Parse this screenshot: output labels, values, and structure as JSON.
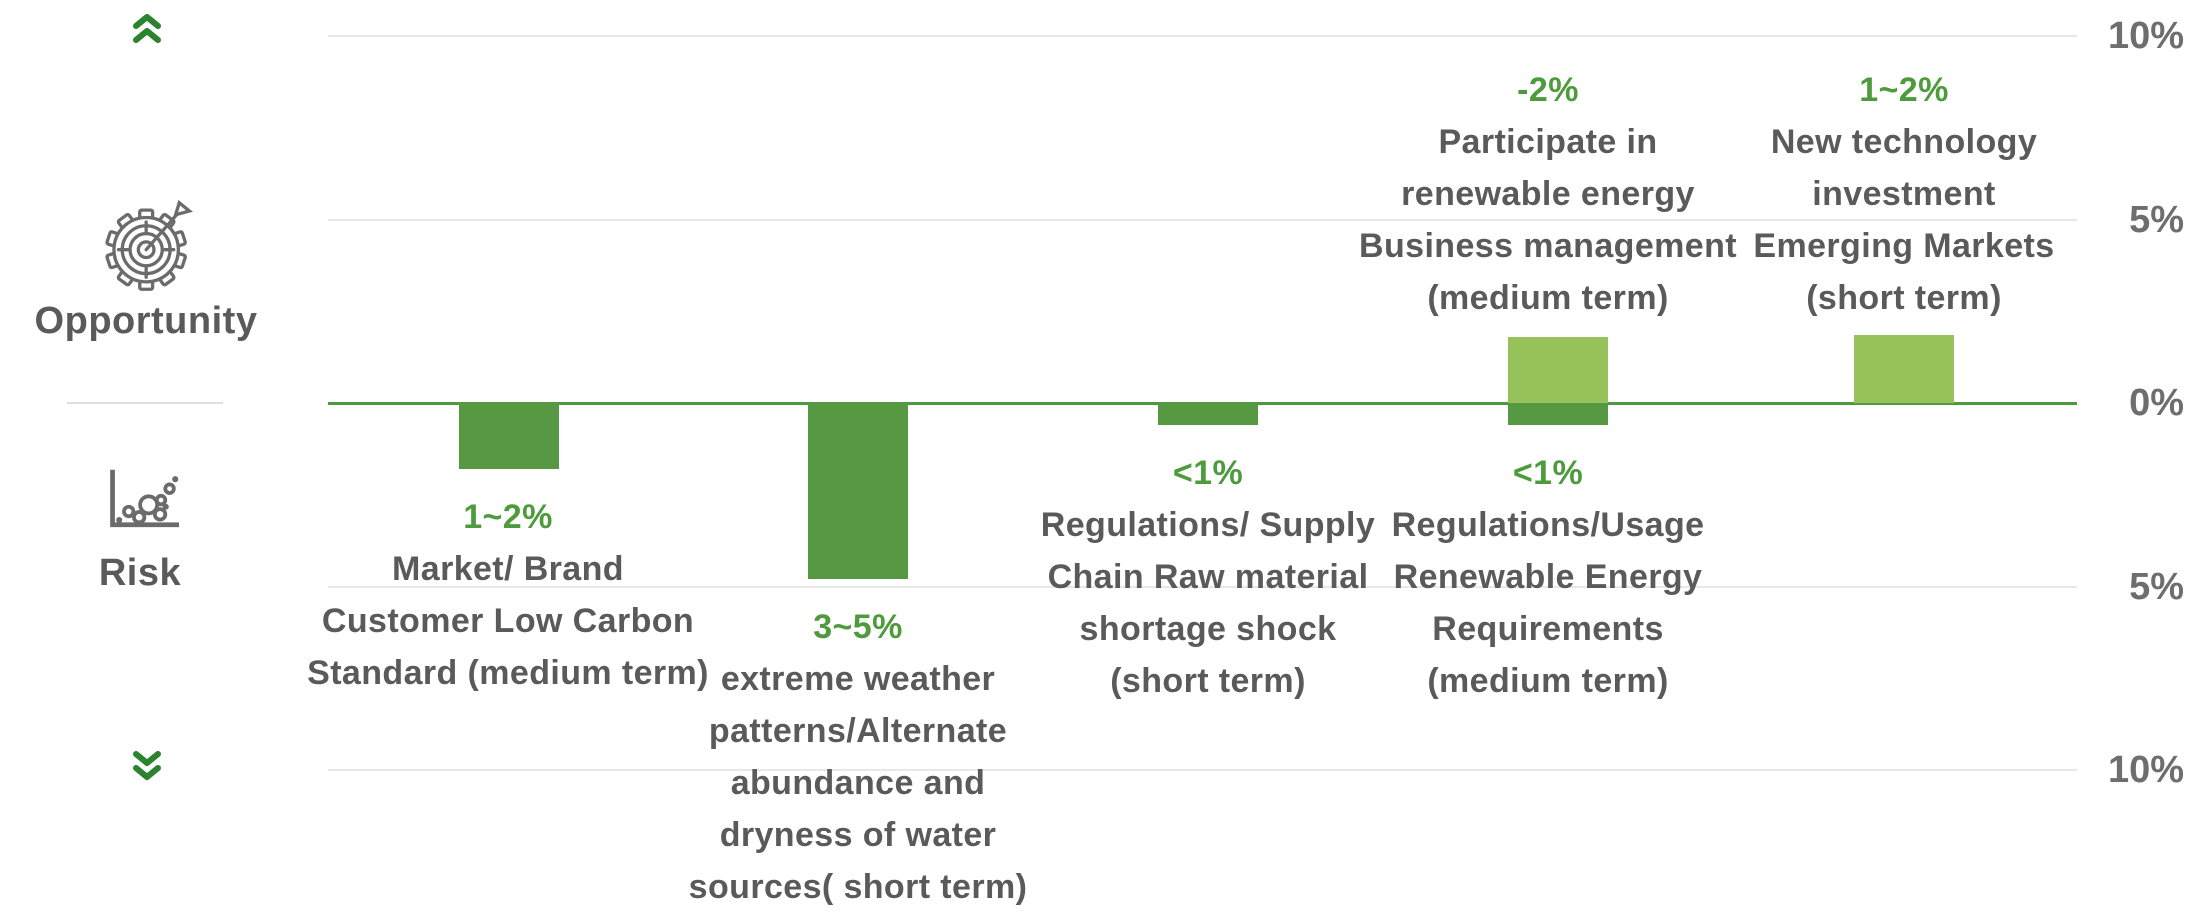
{
  "page": {
    "background": "#ffffff"
  },
  "sidebar": {
    "opportunity_label": "Opportunity",
    "risk_label": "Risk",
    "icons": {
      "top": "double-chevron-up-icon",
      "opportunity": "gear-target-dart-icon",
      "risk": "scatter-bubble-chart-icon",
      "bottom": "double-chevron-down-icon"
    }
  },
  "colors": {
    "risk_bar": "#579943",
    "opportunity_bar": "#97C159",
    "zero_line": "#4F9A3F",
    "value_text": "#4D9B3C",
    "label_text": "#5A5A5A",
    "tick_text": "#6E6E6E",
    "gridline": "#E8E8E8",
    "chevron": "#2B832F",
    "icon_stroke": "#6B6B6B",
    "divider": "#E0E0E0"
  },
  "chart_data": {
    "type": "bar",
    "title": "",
    "xlabel": "",
    "ylabel": "",
    "ylim": [
      -10,
      10
    ],
    "grid": true,
    "legend": "none",
    "yticks": [
      {
        "pct": 10,
        "label": "10%"
      },
      {
        "pct": 5,
        "label": "5%"
      },
      {
        "pct": 0,
        "label": "0%"
      },
      {
        "pct": -5,
        "label": "5%"
      },
      {
        "pct": -10,
        "label": "10%"
      }
    ],
    "series": [
      {
        "name": "Risk",
        "color": "#579943",
        "values": [
          -1.8,
          -4.8,
          -0.6,
          -0.6,
          0
        ]
      },
      {
        "name": "Opportunity",
        "color": "#97C159",
        "values": [
          0,
          0,
          0,
          1.8,
          1.85
        ]
      }
    ],
    "categories": [
      "Market/ Brand Customer Low Carbon Standard (medium term)",
      "extreme weather patterns/Alternate abundance and dryness of water sources( short term)",
      "Regulations/ Supply Chain Raw material shortage shock (short term)",
      "Regulations/Usage Renewable Energy Requirements (medium term) + Participate in renewable energy Business management (medium term)",
      "New technology investment Emerging Markets (short term)"
    ],
    "columns": [
      {
        "risk": {
          "value": "1~2%",
          "impact_pct": 1.8,
          "lines": [
            "Market/ Brand",
            "Customer Low Carbon",
            "Standard (medium term)"
          ]
        }
      },
      {
        "risk": {
          "value": "3~5%",
          "impact_pct": 4.8,
          "lines": [
            "extreme weather",
            "patterns/Alternate",
            "abundance and",
            "dryness of water",
            "sources( short term)"
          ]
        }
      },
      {
        "risk": {
          "value": "<1%",
          "impact_pct": 0.6,
          "lines": [
            "Regulations/ Supply",
            "Chain Raw material",
            "shortage shock",
            "(short term)"
          ]
        }
      },
      {
        "risk": {
          "value": "<1%",
          "impact_pct": 0.6,
          "lines": [
            "Regulations/Usage",
            "Renewable Energy",
            "Requirements",
            "(medium term)"
          ]
        },
        "opportunity": {
          "value": "-2%",
          "impact_pct": 1.8,
          "lines": [
            "Participate in",
            "renewable energy",
            "Business management",
            "(medium term)"
          ]
        }
      },
      {
        "opportunity": {
          "value": "1~2%",
          "impact_pct": 1.85,
          "lines": [
            "New technology",
            "investment",
            "Emerging Markets",
            "(short term)"
          ]
        }
      }
    ]
  }
}
